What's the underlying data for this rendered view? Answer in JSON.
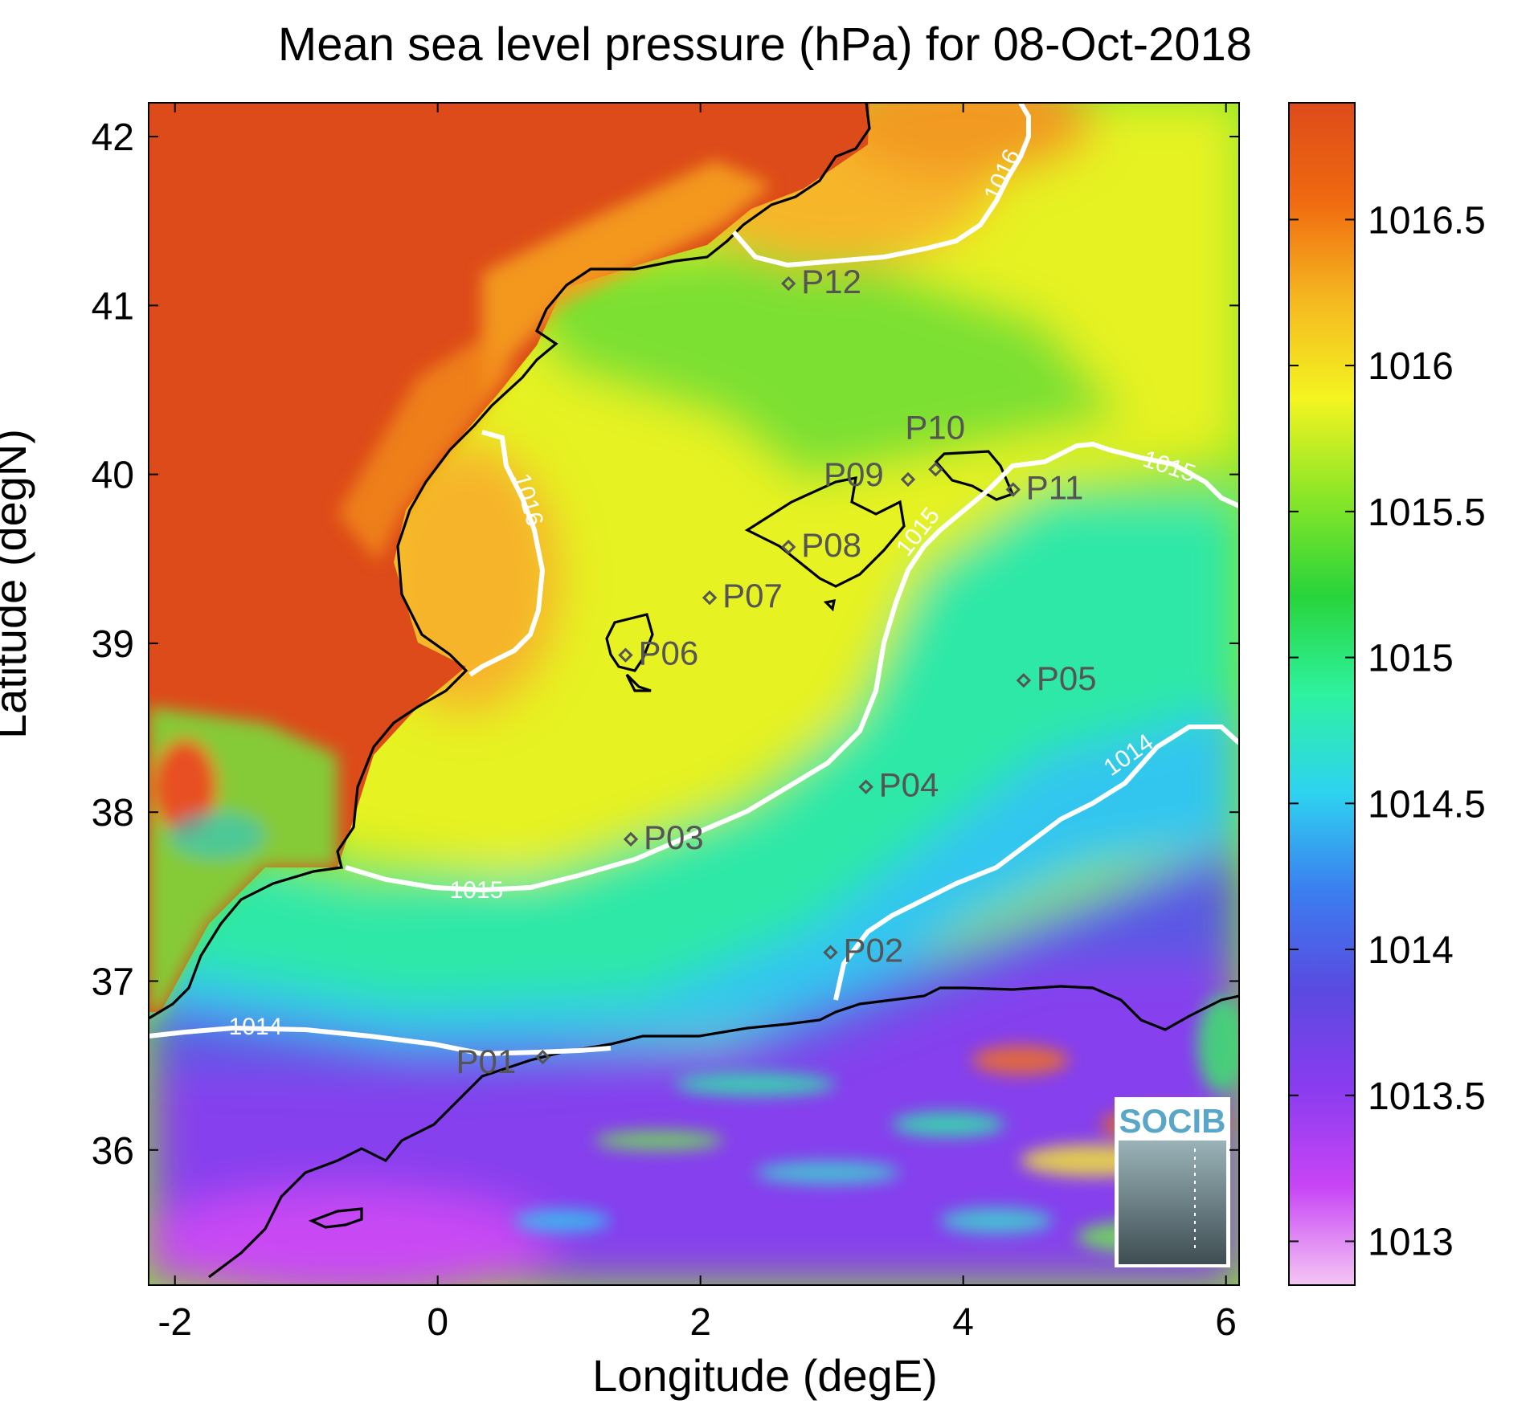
{
  "title": "Mean sea level pressure (hPa) for 08-Oct-2018",
  "xlabel": "Longitude (degE)",
  "ylabel": "Latitude (degN)",
  "x_ticks": [
    "-2",
    "0",
    "2",
    "4",
    "6"
  ],
  "y_ticks": [
    "42",
    "41",
    "40",
    "39",
    "38",
    "37",
    "36"
  ],
  "colorbar_ticks": [
    "1016.5",
    "1016",
    "1015.5",
    "1015",
    "1014.5",
    "1014",
    "1013.5",
    "1013"
  ],
  "contour_labels": [
    "1016",
    "1016",
    "1015",
    "1015",
    "1015",
    "1014",
    "1014"
  ],
  "stations": [
    {
      "id": "P01",
      "lon": 0.8,
      "lat": 36.55
    },
    {
      "id": "P02",
      "lon": 2.99,
      "lat": 37.17
    },
    {
      "id": "P03",
      "lon": 1.47,
      "lat": 37.84
    },
    {
      "id": "P04",
      "lon": 3.26,
      "lat": 38.15
    },
    {
      "id": "P05",
      "lon": 4.46,
      "lat": 38.78
    },
    {
      "id": "P06",
      "lon": 1.43,
      "lat": 38.93
    },
    {
      "id": "P07",
      "lon": 2.07,
      "lat": 39.27
    },
    {
      "id": "P08",
      "lon": 2.67,
      "lat": 39.57
    },
    {
      "id": "P09",
      "lon": 3.58,
      "lat": 39.97
    },
    {
      "id": "P10",
      "lon": 3.79,
      "lat": 40.03
    },
    {
      "id": "P11",
      "lon": 4.38,
      "lat": 39.91
    },
    {
      "id": "P12",
      "lon": 2.67,
      "lat": 41.13
    }
  ],
  "logo_text": "SOCIB",
  "chart_data": {
    "type": "heatmap",
    "title": "Mean sea level pressure (hPa) for 08-Oct-2018",
    "xlabel": "Longitude (degE)",
    "ylabel": "Latitude (degN)",
    "xlim": [
      -2.2,
      6.1
    ],
    "ylim": [
      35.2,
      42.2
    ],
    "colorbar_range": [
      1012.85,
      1016.9
    ],
    "contour_levels": [
      1014,
      1015,
      1016
    ],
    "colormap": [
      "#f4c6f4",
      "#c845f5",
      "#8a3cf0",
      "#5a4ae0",
      "#3b7ef0",
      "#2ed3f0",
      "#2ef2a0",
      "#28d43a",
      "#8ae628",
      "#f4f420",
      "#f5b820",
      "#f06a10",
      "#dd4b1a"
    ]
  }
}
